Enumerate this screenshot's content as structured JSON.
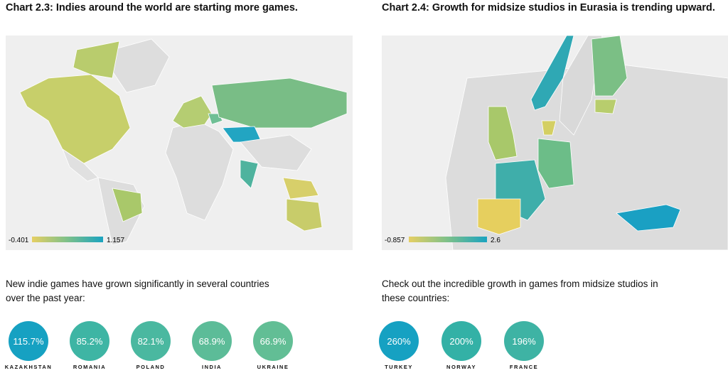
{
  "left": {
    "title": "Chart 2.3: Indies around the world are starting more games.",
    "legend": {
      "min": "-0.401",
      "max": "1.157"
    },
    "text": "New indie games have grown significantly in several countries over the past year:",
    "stats": [
      {
        "value": "115.7%",
        "label": "KAZAKHSTAN"
      },
      {
        "value": "85.2%",
        "label": "ROMANIA"
      },
      {
        "value": "82.1%",
        "label": "POLAND"
      },
      {
        "value": "68.9%",
        "label": "INDIA"
      },
      {
        "value": "66.9%",
        "label": "UKRAINE"
      }
    ]
  },
  "right": {
    "title": "Chart 2.4: Growth for midsize studios in Eurasia is trending upward.",
    "legend": {
      "min": "-0.857",
      "max": "2.6"
    },
    "text": "Check out the incredible growth in games from midsize studios in these countries:",
    "stats": [
      {
        "value": "260%",
        "label": "TURKEY"
      },
      {
        "value": "200%",
        "label": "NORWAY"
      },
      {
        "value": "196%",
        "label": "FRANCE"
      }
    ]
  }
}
